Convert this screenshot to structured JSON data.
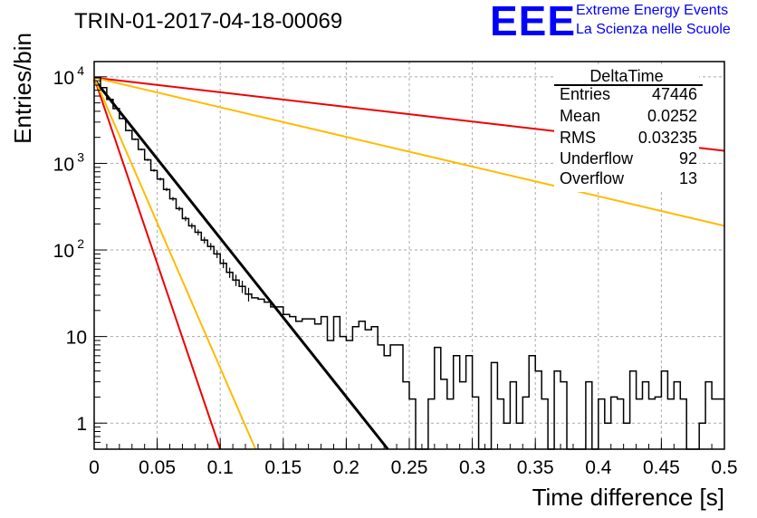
{
  "header": {
    "run_title": "TRIN-01-2017-04-18-00069",
    "logo_text": "EEE",
    "logo_line1": "Extreme Energy Events",
    "logo_line2": "La Scienza nelle Scuole"
  },
  "stats_box": {
    "title": "DeltaTime",
    "rows": [
      {
        "label": "Entries",
        "value": "47446"
      },
      {
        "label": "Mean",
        "value": "0.0252"
      },
      {
        "label": "RMS",
        "value": "0.03235"
      },
      {
        "label": "Underflow",
        "value": "92"
      },
      {
        "label": "Overflow",
        "value": "13"
      }
    ]
  },
  "chart_data": {
    "type": "line",
    "xlabel": "Time difference [s]",
    "ylabel": "Entries/bin",
    "xlim": [
      0,
      0.5
    ],
    "ylim": [
      0.5,
      15000
    ],
    "y_scale": "log",
    "grid": true,
    "x_ticks": [
      "0",
      "0.05",
      "0.1",
      "0.15",
      "0.2",
      "0.25",
      "0.3",
      "0.35",
      "0.4",
      "0.45",
      "0.5"
    ],
    "y_ticks": [
      {
        "value": 1,
        "label": "1"
      },
      {
        "value": 10,
        "label": "10"
      },
      {
        "value": 100,
        "label": "10",
        "exp": "2"
      },
      {
        "value": 1000,
        "label": "10",
        "exp": "3"
      },
      {
        "value": 10000,
        "label": "10",
        "exp": "4"
      }
    ],
    "histogram": {
      "color": "#000000",
      "bin_width": 0.005,
      "values": [
        9800,
        7500,
        5500,
        4300,
        3300,
        2400,
        1900,
        1450,
        1100,
        830,
        660,
        500,
        390,
        300,
        230,
        190,
        160,
        130,
        110,
        90,
        70,
        55,
        45,
        38,
        31,
        28,
        27,
        25,
        22,
        22,
        18,
        17,
        15,
        16,
        16,
        14,
        17,
        9,
        17,
        10,
        9,
        13,
        15,
        12,
        13,
        8,
        6,
        8,
        8,
        3,
        1.9,
        0.3,
        0.3,
        1.9,
        7.5,
        3.2,
        1.9,
        6,
        3,
        6,
        2,
        0.3,
        0.3,
        5,
        1.9,
        1,
        3,
        1,
        2,
        6,
        4,
        1.9,
        0.3,
        4,
        3,
        0.3,
        0.3,
        0.3,
        3,
        0.3,
        1.9,
        1,
        2,
        1.9,
        1,
        4,
        1.9,
        3,
        1.9,
        2,
        4,
        1.9,
        3,
        1.9,
        0.3,
        0.3,
        1,
        3,
        1.9,
        1.9
      ]
    },
    "series": [
      {
        "color": "#000000",
        "width": 3,
        "points": [
          [
            0,
            9300
          ],
          [
            0.233,
            0.5
          ]
        ]
      },
      {
        "color": "#ee0000",
        "width": 2,
        "points": [
          [
            0,
            9800
          ],
          [
            0.1,
            0.5
          ]
        ]
      },
      {
        "color": "#ee0000",
        "width": 2,
        "points": [
          [
            0,
            9800
          ],
          [
            0.5,
            1400
          ]
        ]
      },
      {
        "color": "#ffbb00",
        "width": 2,
        "points": [
          [
            0,
            9800
          ],
          [
            0.128,
            0.5
          ]
        ]
      },
      {
        "color": "#ffbb00",
        "width": 2,
        "points": [
          [
            0,
            9800
          ],
          [
            0.5,
            190
          ]
        ]
      }
    ]
  }
}
